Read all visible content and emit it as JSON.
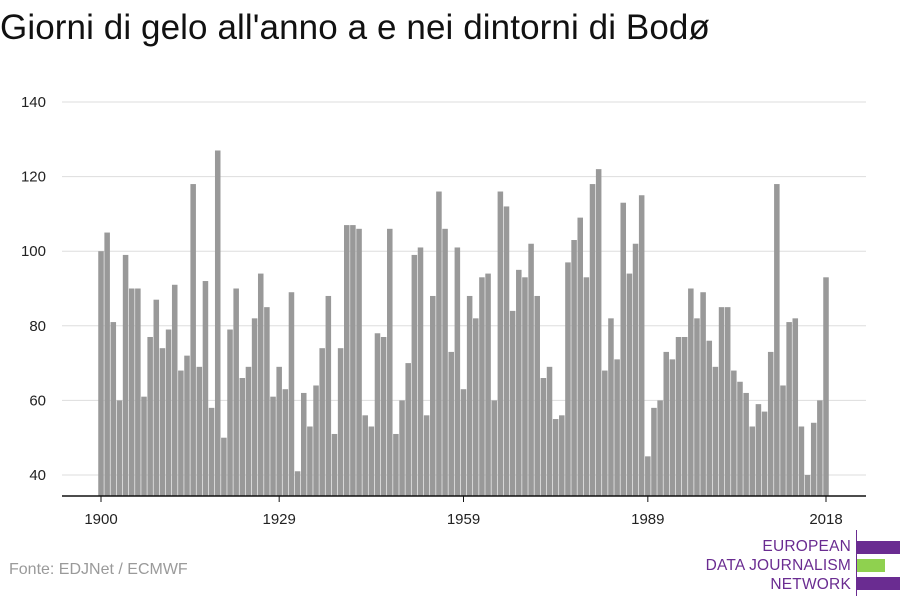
{
  "title": "Giorni di gelo all'anno a e nei dintorni di Bodø",
  "source": "Fonte: EDJNet / ECMWF",
  "logo": {
    "lines": [
      "EUROPEAN",
      "DATA JOURNALISM",
      "NETWORK"
    ],
    "colors": {
      "purple": "#6a2c91",
      "green": "#8fd14f"
    }
  },
  "colors": {
    "bar": "#999999",
    "grid": "#dddddd",
    "axis": "#111111"
  },
  "chart_data": {
    "type": "bar",
    "title": "Giorni di gelo all'anno a e nei dintorni di Bodø",
    "xlabel": "",
    "ylabel": "",
    "ylim": [
      35,
      140
    ],
    "yticks": [
      40,
      60,
      80,
      100,
      120,
      140
    ],
    "xticks": [
      1900,
      1929,
      1959,
      1989,
      2018
    ],
    "grid": true,
    "x": [
      1900,
      1901,
      1902,
      1903,
      1904,
      1905,
      1906,
      1907,
      1908,
      1909,
      1910,
      1911,
      1912,
      1913,
      1914,
      1915,
      1916,
      1917,
      1918,
      1919,
      1920,
      1921,
      1922,
      1923,
      1924,
      1925,
      1926,
      1927,
      1928,
      1929,
      1930,
      1931,
      1932,
      1933,
      1934,
      1935,
      1936,
      1937,
      1938,
      1939,
      1940,
      1941,
      1942,
      1943,
      1944,
      1945,
      1946,
      1947,
      1948,
      1949,
      1950,
      1951,
      1952,
      1953,
      1954,
      1955,
      1956,
      1957,
      1958,
      1959,
      1960,
      1961,
      1962,
      1963,
      1964,
      1965,
      1966,
      1967,
      1968,
      1969,
      1970,
      1971,
      1972,
      1973,
      1974,
      1975,
      1976,
      1977,
      1978,
      1979,
      1980,
      1981,
      1982,
      1983,
      1984,
      1985,
      1986,
      1987,
      1988,
      1989,
      1990,
      1991,
      1992,
      1993,
      1994,
      1995,
      1996,
      1997,
      1998,
      1999,
      2000,
      2001,
      2002,
      2003,
      2004,
      2005,
      2006,
      2007,
      2008,
      2009,
      2010,
      2011,
      2012,
      2013,
      2014,
      2015,
      2016,
      2017,
      2018
    ],
    "values": [
      100,
      105,
      81,
      60,
      99,
      90,
      90,
      61,
      77,
      87,
      74,
      79,
      91,
      68,
      72,
      118,
      69,
      92,
      58,
      127,
      50,
      79,
      90,
      66,
      69,
      82,
      94,
      85,
      61,
      69,
      63,
      89,
      41,
      62,
      53,
      64,
      74,
      88,
      51,
      74,
      107,
      107,
      106,
      56,
      53,
      78,
      77,
      106,
      51,
      60,
      70,
      99,
      101,
      56,
      88,
      116,
      106,
      73,
      101,
      63,
      88,
      82,
      93,
      94,
      60,
      116,
      112,
      84,
      95,
      93,
      102,
      88,
      66,
      69,
      55,
      56,
      97,
      103,
      109,
      93,
      118,
      122,
      68,
      82,
      71,
      113,
      94,
      102,
      115,
      45,
      58,
      60,
      73,
      71,
      77,
      77,
      90,
      82,
      89,
      76,
      69,
      85,
      85,
      68,
      65,
      62,
      53,
      59,
      57,
      73,
      118,
      64,
      81,
      82,
      53,
      40,
      54,
      60,
      93
    ]
  }
}
